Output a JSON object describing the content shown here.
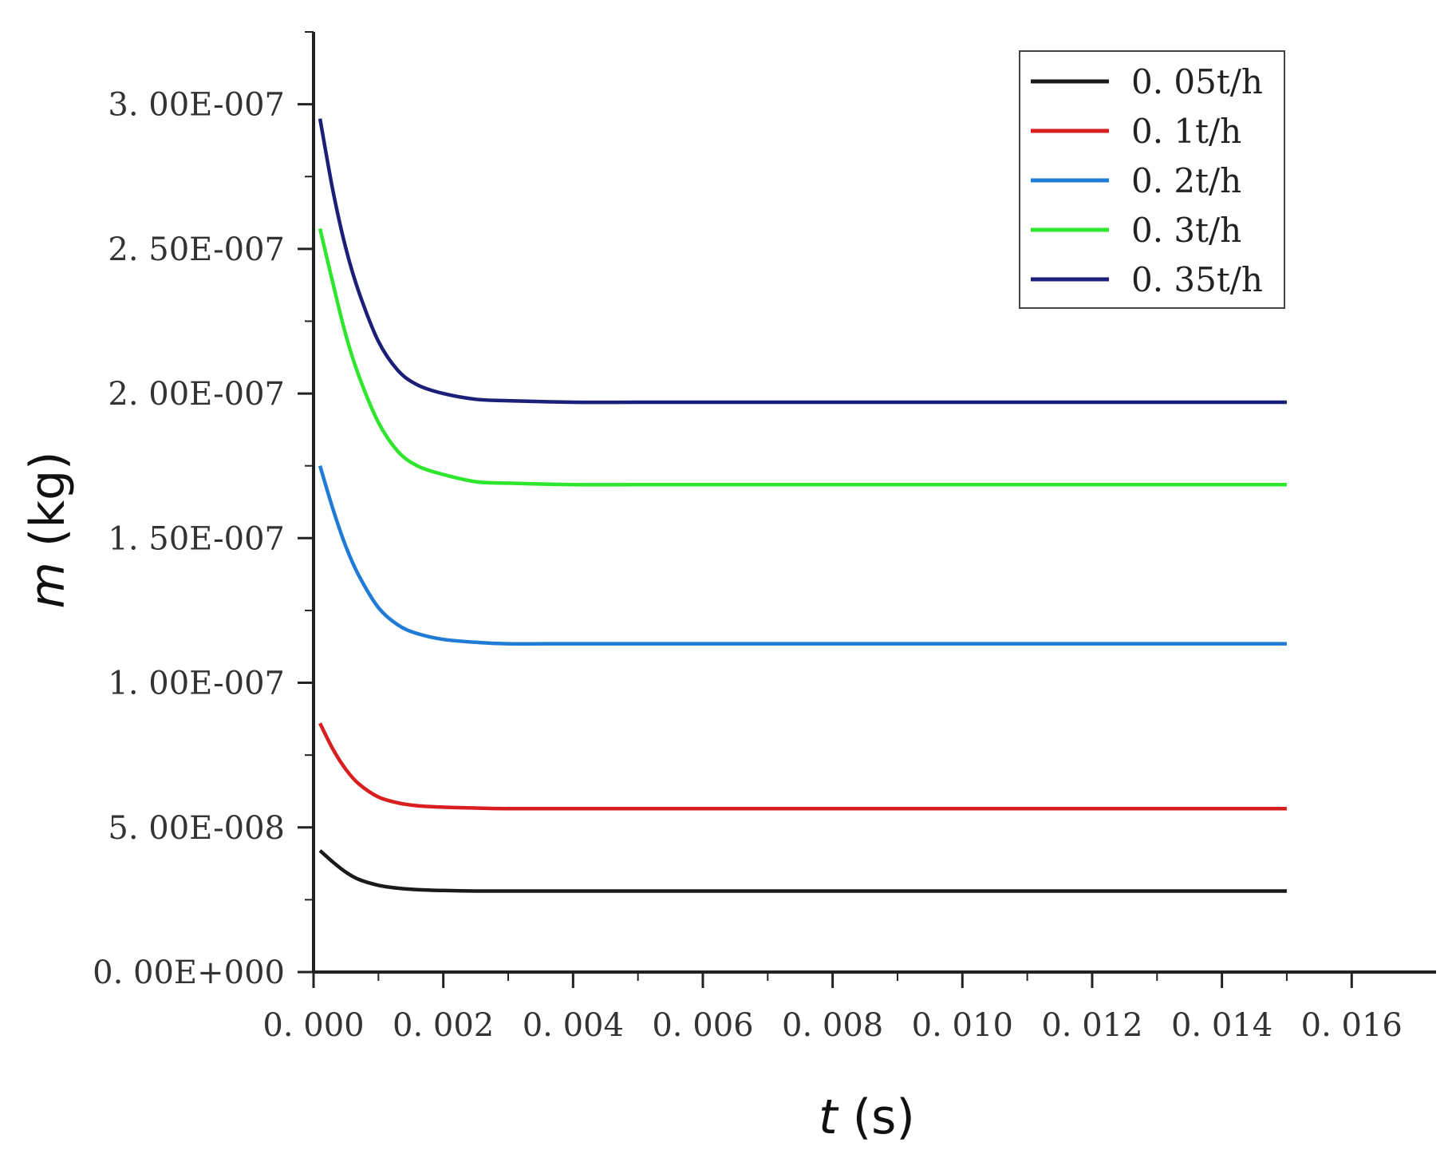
{
  "chart_data": {
    "type": "line",
    "title": "",
    "xlabel": {
      "var": "t",
      "unit": " (s)"
    },
    "ylabel": {
      "var": "m",
      "unit": " (kg)"
    },
    "xlim": [
      0,
      0.0173
    ],
    "ylim": [
      0,
      3.25e-07
    ],
    "x_ticks": [
      0,
      0.002,
      0.004,
      0.006,
      0.008,
      0.01,
      0.012,
      0.014,
      0.016
    ],
    "x_tick_labels": [
      "0. 000",
      "0. 002",
      "0. 004",
      "0. 006",
      "0. 008",
      "0. 010",
      "0. 012",
      "0. 014",
      "0. 016"
    ],
    "y_ticks": [
      0,
      5e-08,
      1e-07,
      1.5e-07,
      2e-07,
      2.5e-07,
      3e-07
    ],
    "y_tick_labels": [
      "0. 00E+000",
      "5. 00E-008",
      "1. 00E-007",
      "1. 50E-007",
      "2. 00E-007",
      "2. 50E-007",
      "3. 00E-007"
    ],
    "grid": false,
    "legend_position": "top-right",
    "x": [
      0.0001,
      0.0003,
      0.0005,
      0.0007,
      0.001,
      0.0013,
      0.0016,
      0.002,
      0.0025,
      0.003,
      0.004,
      0.005,
      0.006,
      0.008,
      0.01,
      0.012,
      0.015
    ],
    "series": [
      {
        "name": "0. 05t/h",
        "color": "#1a1a1a",
        "values": [
          4.2e-08,
          3.8e-08,
          3.45e-08,
          3.2e-08,
          3e-08,
          2.9e-08,
          2.85e-08,
          2.82e-08,
          2.8e-08,
          2.8e-08,
          2.8e-08,
          2.8e-08,
          2.8e-08,
          2.8e-08,
          2.8e-08,
          2.8e-08,
          2.8e-08
        ]
      },
      {
        "name": "0. 1t/h",
        "color": "#d81e1e",
        "values": [
          8.6e-08,
          7.7e-08,
          7e-08,
          6.5e-08,
          6.05e-08,
          5.85e-08,
          5.75e-08,
          5.7e-08,
          5.67e-08,
          5.65e-08,
          5.65e-08,
          5.65e-08,
          5.65e-08,
          5.65e-08,
          5.65e-08,
          5.65e-08,
          5.65e-08
        ]
      },
      {
        "name": "0. 2t/h",
        "color": "#1f7bd6",
        "values": [
          1.75e-07,
          1.6e-07,
          1.47e-07,
          1.37e-07,
          1.26e-07,
          1.2e-07,
          1.17e-07,
          1.15e-07,
          1.14e-07,
          1.135e-07,
          1.135e-07,
          1.135e-07,
          1.135e-07,
          1.135e-07,
          1.135e-07,
          1.135e-07,
          1.135e-07
        ]
      },
      {
        "name": "0. 3t/h",
        "color": "#2ee62e",
        "values": [
          2.57e-07,
          2.38e-07,
          2.2e-07,
          2.06e-07,
          1.9e-07,
          1.8e-07,
          1.75e-07,
          1.72e-07,
          1.695e-07,
          1.69e-07,
          1.685e-07,
          1.685e-07,
          1.685e-07,
          1.685e-07,
          1.685e-07,
          1.685e-07,
          1.685e-07
        ]
      },
      {
        "name": "0. 35t/h",
        "color": "#1c1f78",
        "values": [
          2.95e-07,
          2.7e-07,
          2.5e-07,
          2.35e-07,
          2.18e-07,
          2.08e-07,
          2.03e-07,
          2e-07,
          1.98e-07,
          1.975e-07,
          1.97e-07,
          1.97e-07,
          1.97e-07,
          1.97e-07,
          1.97e-07,
          1.97e-07,
          1.97e-07
        ]
      }
    ]
  }
}
